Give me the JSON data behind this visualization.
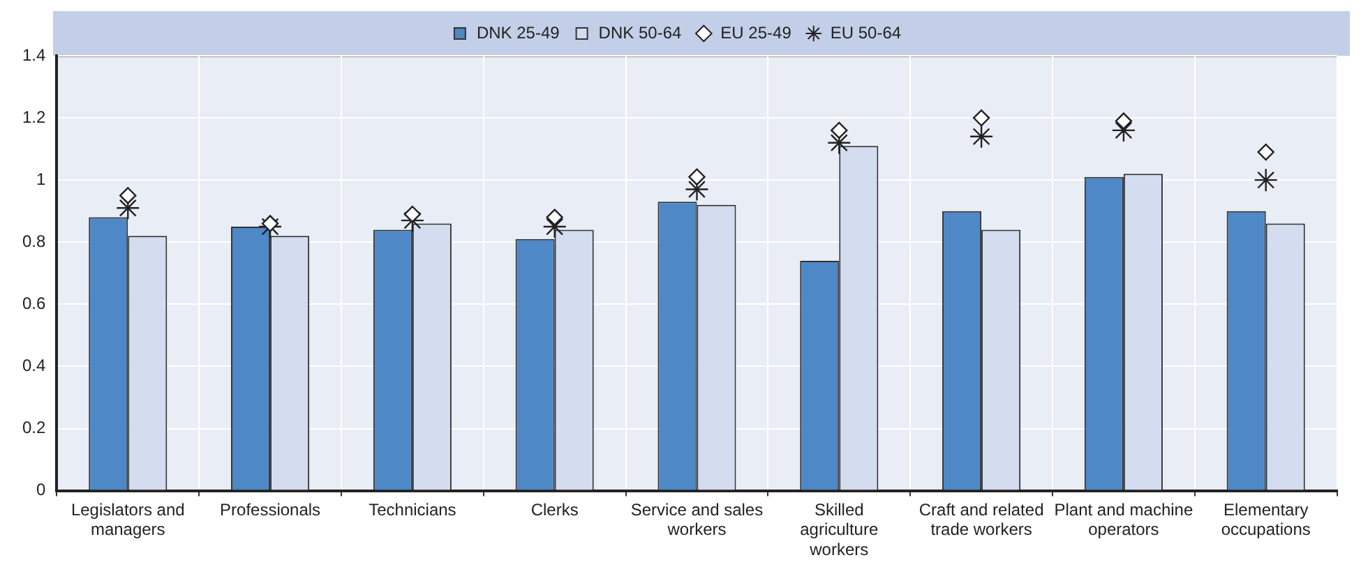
{
  "chart_data": {
    "type": "bar",
    "categories": [
      "Legislators and managers",
      "Professionals",
      "Technicians",
      "Clerks",
      "Service and sales workers",
      "Skilled agriculture workers",
      "Craft and related trade workers",
      "Plant and machine operators",
      "Elementary occupations"
    ],
    "series": [
      {
        "name": "DNK 25-49",
        "color": "#4e88c7",
        "values": [
          0.88,
          0.85,
          0.84,
          0.81,
          0.93,
          0.74,
          0.9,
          1.01,
          0.9
        ]
      },
      {
        "name": "DNK 50-64",
        "color": "#d4dcef",
        "values": [
          0.82,
          0.82,
          0.86,
          0.84,
          0.92,
          1.11,
          0.84,
          1.02,
          0.86
        ]
      },
      {
        "name": "EU 25-49",
        "type": "scatter",
        "marker": "diamond",
        "color": "#222222",
        "values": [
          0.95,
          0.86,
          0.89,
          0.88,
          1.01,
          1.16,
          1.2,
          1.19,
          1.09
        ]
      },
      {
        "name": "EU 50-64",
        "type": "scatter",
        "marker": "cross",
        "color": "#222222",
        "values": [
          0.91,
          0.85,
          0.87,
          0.85,
          0.97,
          1.12,
          1.14,
          1.16,
          1.0
        ]
      }
    ],
    "ylim": [
      0,
      1.4
    ],
    "yticks": [
      0,
      0.2,
      0.4,
      0.6,
      0.8,
      1,
      1.2,
      1.4
    ],
    "grid": true,
    "legend": "top"
  }
}
